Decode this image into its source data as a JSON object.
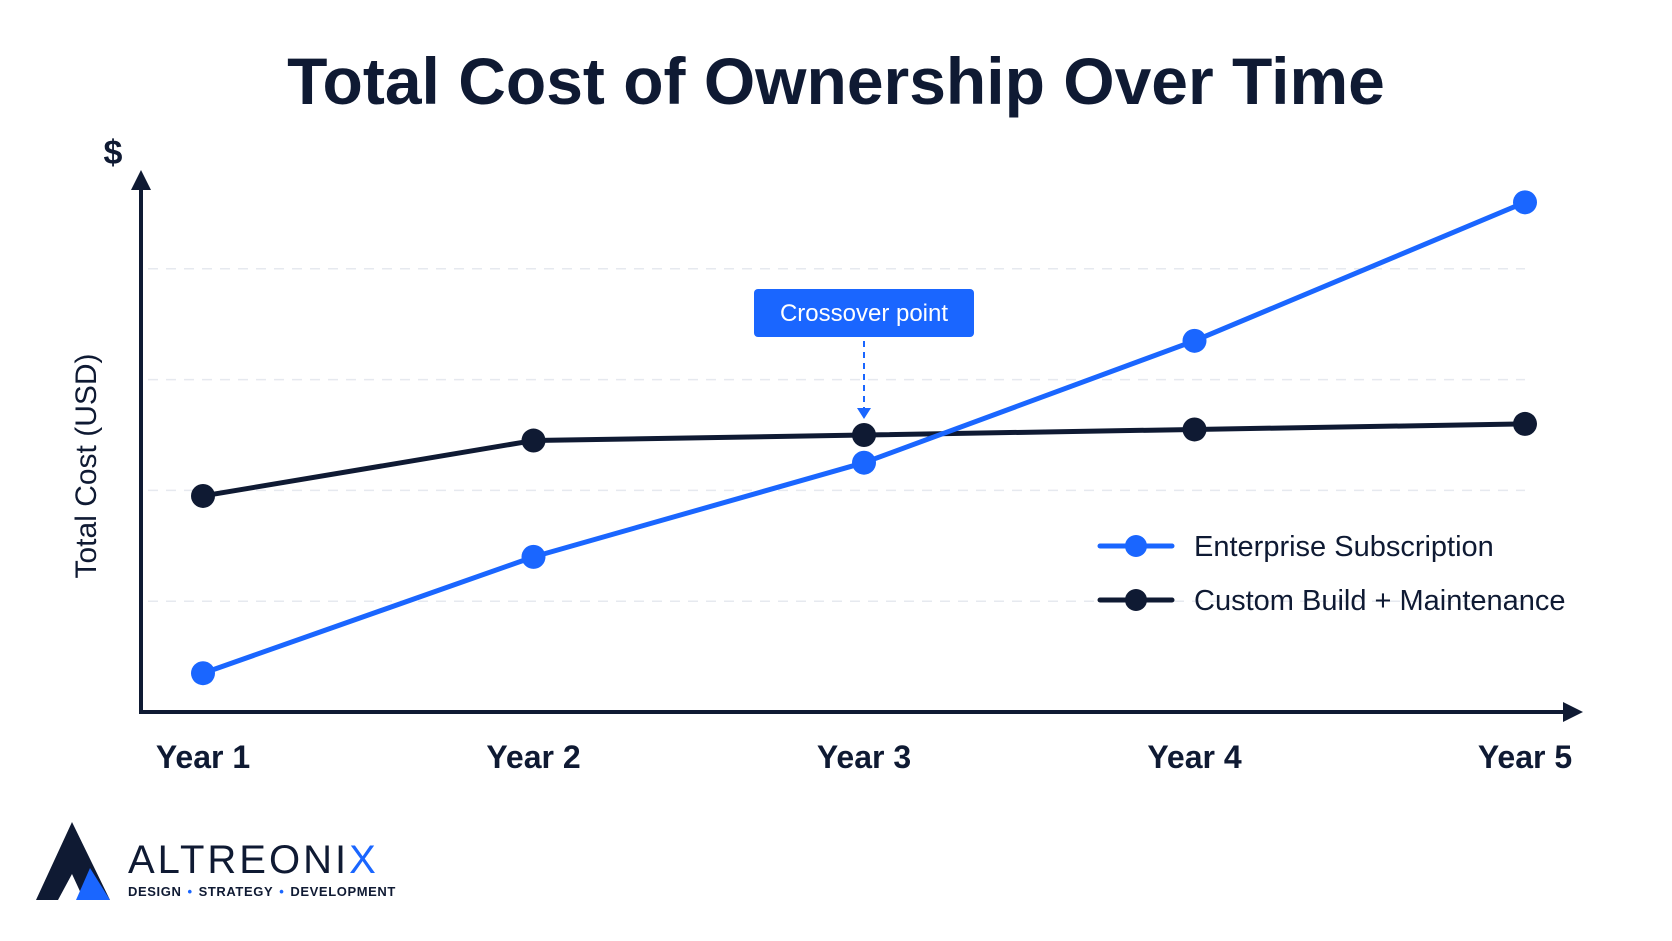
{
  "page": {
    "title": "Total Cost of Ownership Over Time"
  },
  "chart_data": {
    "type": "line",
    "title": "Total Cost of Ownership Over Time",
    "xlabel": "",
    "ylabel": "Total Cost (USD)",
    "y_unit_label": "$",
    "categories": [
      "Year 1",
      "Year 2",
      "Year 3",
      "Year 4",
      "Year 5"
    ],
    "ylim": [
      0,
      100
    ],
    "y_ticks_labeled": false,
    "grid": true,
    "legend_position": "right",
    "series": [
      {
        "name": "Enterprise Subscription",
        "color": "#1a66ff",
        "values": [
          7,
          28,
          45,
          67,
          92
        ]
      },
      {
        "name": "Custom Build + Maintenance",
        "color": "#0f1a33",
        "values": [
          39,
          49,
          50,
          51,
          52
        ]
      }
    ],
    "annotations": [
      {
        "text": "Crossover point",
        "category": "Year 3",
        "value": 50
      }
    ]
  },
  "brand": {
    "name_main": "ALTREONI",
    "name_accent": "X",
    "tagline_parts": [
      "DESIGN",
      "STRATEGY",
      "DEVELOPMENT"
    ],
    "separator": "•",
    "accent_color": "#1a66ff",
    "dark_color": "#0f1a33"
  }
}
